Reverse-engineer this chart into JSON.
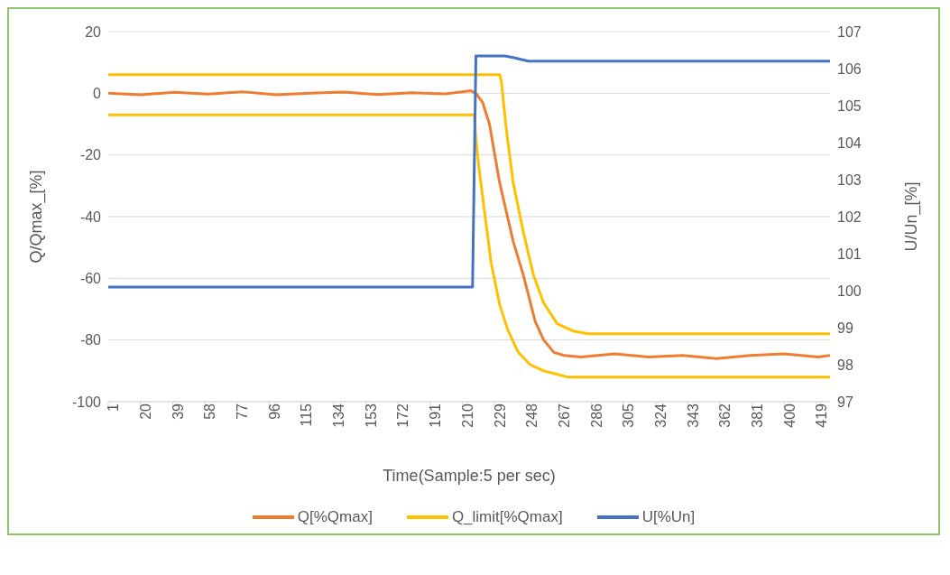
{
  "chart_data": {
    "type": "line",
    "xlabel": "Time(Sample:5 per sec)",
    "ylabel": "Q/Qmax_[%]",
    "y2label": "U/Un_[%]",
    "xlim": [
      1,
      427
    ],
    "xticks": [
      1,
      20,
      39,
      58,
      77,
      96,
      115,
      134,
      153,
      172,
      191,
      210,
      229,
      248,
      267,
      286,
      305,
      324,
      343,
      362,
      381,
      400,
      419
    ],
    "ylim": [
      -100,
      20
    ],
    "yticks": [
      -100,
      -80,
      -60,
      -40,
      -20,
      0,
      20
    ],
    "y2lim": [
      97,
      107
    ],
    "y2ticks": [
      97,
      98,
      99,
      100,
      101,
      102,
      103,
      104,
      105,
      106,
      107
    ],
    "grid": "y",
    "legend": "bottom",
    "marker": "none",
    "line_style": "solid",
    "series": [
      {
        "name": "Q[%Qmax]",
        "color": "#ed7d31",
        "x": [
          1,
          20,
          40,
          60,
          80,
          100,
          120,
          140,
          160,
          180,
          200,
          215,
          218,
          222,
          226,
          232,
          240,
          246,
          253,
          258,
          264,
          270,
          280,
          300,
          320,
          340,
          360,
          380,
          400,
          420,
          427
        ],
        "values": [
          0,
          -0.5,
          0.3,
          -0.3,
          0.5,
          -0.5,
          0,
          0.4,
          -0.4,
          0.2,
          -0.2,
          0.8,
          0,
          -3,
          -10,
          -29,
          -48,
          -59,
          -74,
          -80,
          -84,
          -85,
          -85.5,
          -84.5,
          -85.5,
          -85,
          -86,
          -85,
          -84.5,
          -85.5,
          -85
        ]
      },
      {
        "name": "Q_limit[%Qmax]",
        "color": "#ffc000",
        "x": [
          1,
          232,
          233,
          236,
          240,
          246,
          252,
          258,
          266,
          275,
          284,
          427
        ],
        "values": [
          6,
          6,
          4,
          -12,
          -29,
          -45,
          -59,
          -68,
          -74.7,
          -77,
          -78,
          -78
        ]
      },
      {
        "color": "#ffc000",
        "x": [
          1,
          217,
          218,
          220,
          223,
          227,
          232,
          237,
          243,
          250,
          258,
          265,
          272,
          427
        ],
        "values": [
          -7,
          -7,
          -15,
          -25,
          -38,
          -55,
          -68.5,
          -77,
          -84,
          -88,
          -90,
          -91,
          -92,
          -92
        ]
      },
      {
        "name": "U[%Un]",
        "color": "#4472c4",
        "axis": "y2",
        "x": [
          1,
          216,
          218,
          235,
          240,
          249,
          427
        ],
        "values": [
          100.1,
          100.1,
          106.34,
          106.34,
          106.3,
          106.2,
          106.2
        ]
      }
    ]
  }
}
